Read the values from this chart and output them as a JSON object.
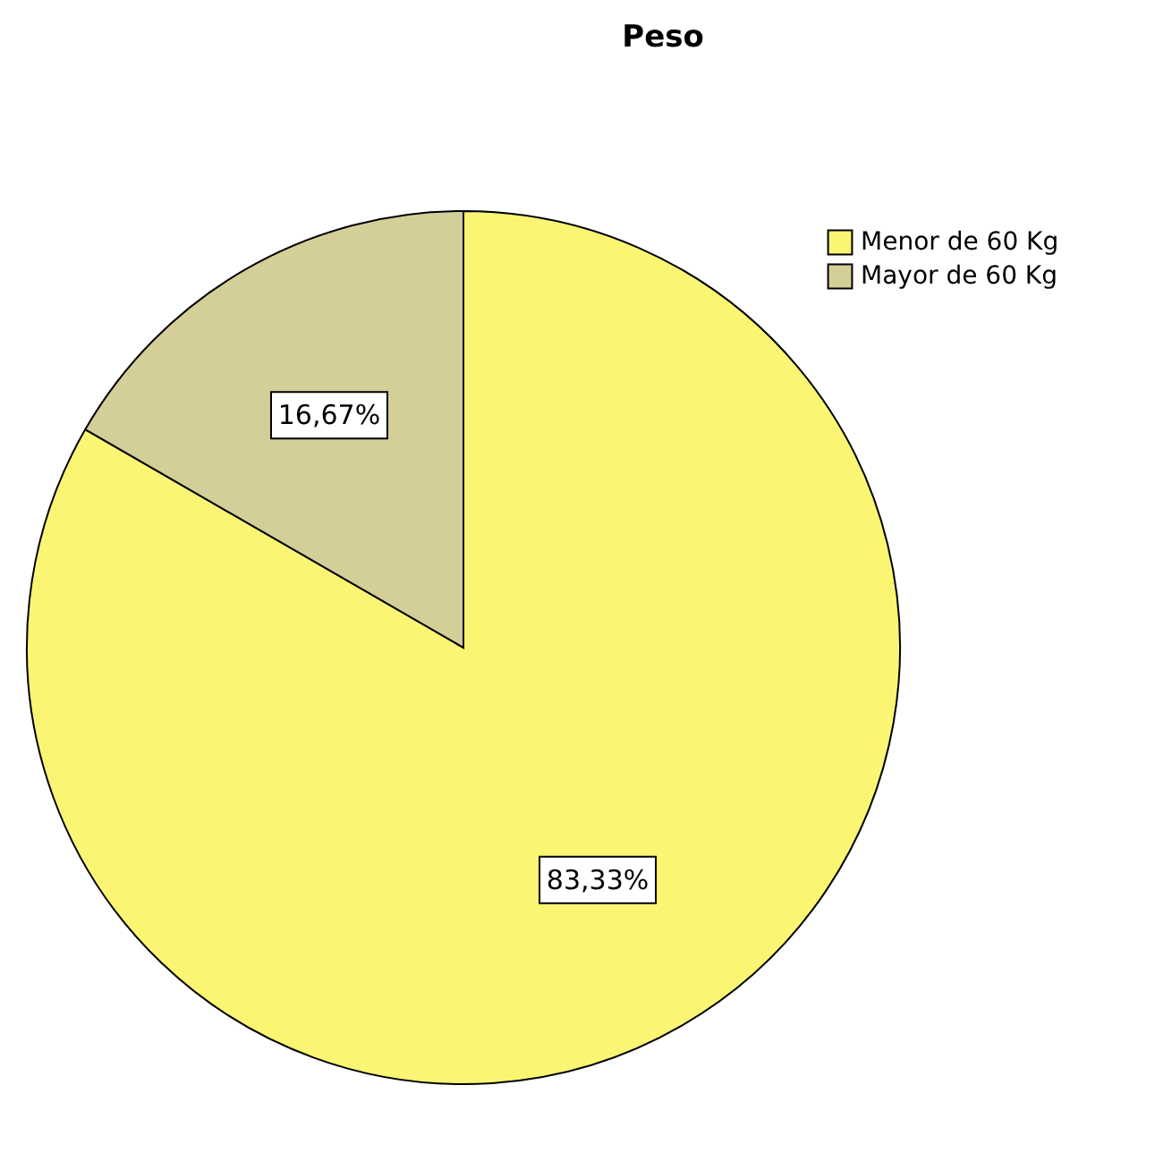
{
  "chart_data": {
    "type": "pie",
    "title": "Peso",
    "categories": [
      "Menor de 60 Kg",
      "Mayor de 60 Kg"
    ],
    "values": [
      83.33,
      16.67
    ],
    "colors": [
      "#faf573",
      "#d4ce98"
    ],
    "value_labels": [
      "83,33%",
      "16,67%"
    ],
    "legend": "top right"
  }
}
